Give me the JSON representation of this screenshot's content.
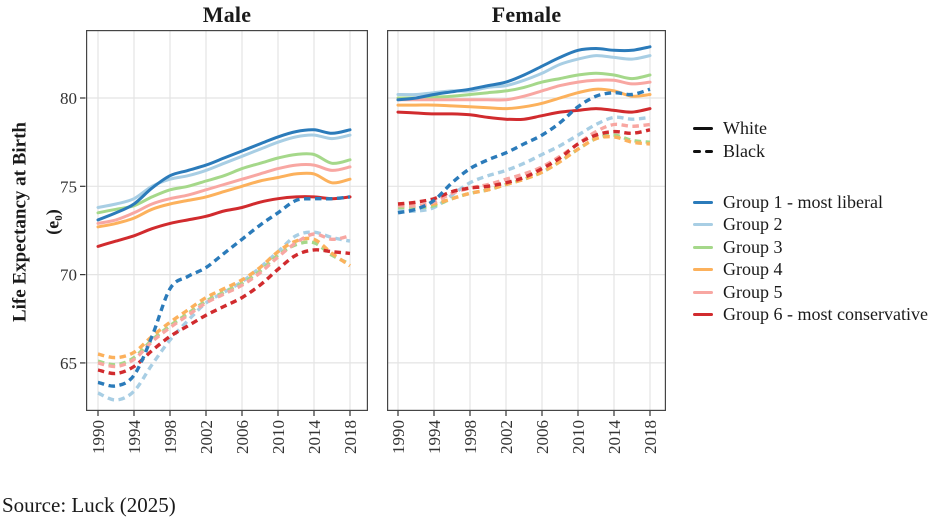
{
  "figure": {
    "y_axis": {
      "title": "Life Expectancy at Birth",
      "subtitle": "(e₀)",
      "tick_labels": [
        "80",
        "75",
        "70",
        "65"
      ]
    },
    "source_note": "Source: Luck (2025)",
    "legend": {
      "line_types": [
        {
          "label": "White",
          "style": "solid"
        },
        {
          "label": "Black",
          "style": "dashed"
        }
      ],
      "groups": [
        {
          "label": "Group 1 - most liberal",
          "color": "#2b7bba"
        },
        {
          "label": "Group 2",
          "color": "#a8cee4"
        },
        {
          "label": "Group 3",
          "color": "#a5d88a"
        },
        {
          "label": "Group 4",
          "color": "#fcb15c"
        },
        {
          "label": "Group 5",
          "color": "#f8a7a2"
        },
        {
          "label": "Group 6 - most conservative",
          "color": "#d12b2e"
        }
      ]
    },
    "colors": {
      "text": "#1a1a1a",
      "grid": "#e4e4e4",
      "panel_border": "#454545",
      "axis_tick": "#333333",
      "key_black": "#111111"
    }
  },
  "chart_data": {
    "type": "line",
    "title": "",
    "xlabel": "",
    "ylabel": "Life Expectancy at Birth (e0)",
    "years": [
      1990,
      1992,
      1994,
      1996,
      1998,
      2000,
      2002,
      2004,
      2006,
      2008,
      2010,
      2012,
      2014,
      2016,
      2018
    ],
    "x_tick_years": [
      1990,
      1994,
      1998,
      2002,
      2006,
      2010,
      2014,
      2018
    ],
    "y_ticks": [
      80,
      75,
      70,
      65
    ],
    "ylim": [
      62.3,
      83.9
    ],
    "grid": true,
    "legend_position": "right",
    "panels": [
      {
        "title": "Male",
        "series": [
          {
            "group": 1,
            "race": "White",
            "values": [
              73.1,
              73.5,
              74.0,
              74.9,
              75.6,
              75.9,
              76.2,
              76.6,
              77.0,
              77.4,
              77.8,
              78.1,
              78.2,
              78.0,
              78.2
            ]
          },
          {
            "group": 2,
            "race": "White",
            "values": [
              73.8,
              74.0,
              74.3,
              75.0,
              75.4,
              75.6,
              75.9,
              76.3,
              76.7,
              77.1,
              77.5,
              77.8,
              77.9,
              77.7,
              77.9
            ]
          },
          {
            "group": 3,
            "race": "White",
            "values": [
              73.5,
              73.7,
              73.9,
              74.4,
              74.8,
              75.0,
              75.3,
              75.6,
              76.0,
              76.3,
              76.6,
              76.8,
              76.8,
              76.3,
              76.5
            ]
          },
          {
            "group": 4,
            "race": "White",
            "values": [
              72.7,
              72.9,
              73.2,
              73.7,
              74.0,
              74.2,
              74.4,
              74.7,
              75.0,
              75.3,
              75.5,
              75.7,
              75.7,
              75.2,
              75.4
            ]
          },
          {
            "group": 5,
            "race": "White",
            "values": [
              72.9,
              73.1,
              73.5,
              74.0,
              74.3,
              74.5,
              74.8,
              75.1,
              75.4,
              75.7,
              76.0,
              76.2,
              76.2,
              75.9,
              76.1
            ]
          },
          {
            "group": 6,
            "race": "White",
            "values": [
              71.6,
              71.9,
              72.2,
              72.6,
              72.9,
              73.1,
              73.3,
              73.6,
              73.8,
              74.1,
              74.3,
              74.4,
              74.4,
              74.3,
              74.4
            ]
          },
          {
            "group": 1,
            "race": "Black",
            "values": [
              63.9,
              63.7,
              64.3,
              66.5,
              69.2,
              69.9,
              70.4,
              71.2,
              72.0,
              72.8,
              73.5,
              74.2,
              74.3,
              74.3,
              74.4
            ]
          },
          {
            "group": 2,
            "race": "Black",
            "values": [
              63.3,
              62.9,
              63.4,
              64.9,
              66.3,
              67.4,
              68.4,
              69.0,
              69.6,
              70.4,
              71.3,
              72.2,
              72.4,
              72.1,
              71.9
            ]
          },
          {
            "group": 3,
            "race": "Black",
            "values": [
              65.1,
              64.9,
              65.3,
              66.3,
              67.1,
              67.8,
              68.5,
              69.0,
              69.5,
              70.2,
              71.1,
              71.7,
              71.8,
              71.1,
              70.6
            ]
          },
          {
            "group": 4,
            "race": "Black",
            "values": [
              65.5,
              65.3,
              65.6,
              66.5,
              67.3,
              68.0,
              68.7,
              69.2,
              69.7,
              70.4,
              71.3,
              71.9,
              72.0,
              71.2,
              70.5
            ]
          },
          {
            "group": 5,
            "race": "Black",
            "values": [
              65.0,
              64.8,
              65.2,
              66.2,
              67.0,
              67.7,
              68.4,
              68.9,
              69.4,
              70.1,
              71.0,
              71.8,
              72.3,
              72.0,
              72.2
            ]
          },
          {
            "group": 6,
            "race": "Black",
            "values": [
              64.6,
              64.4,
              64.8,
              65.7,
              66.5,
              67.1,
              67.7,
              68.2,
              68.7,
              69.4,
              70.3,
              71.1,
              71.4,
              71.3,
              71.2
            ]
          }
        ]
      },
      {
        "title": "Female",
        "series": [
          {
            "group": 1,
            "race": "White",
            "values": [
              79.9,
              80.0,
              80.2,
              80.35,
              80.5,
              80.7,
              80.9,
              81.3,
              81.8,
              82.3,
              82.7,
              82.8,
              82.7,
              82.7,
              82.9
            ]
          },
          {
            "group": 2,
            "race": "White",
            "values": [
              80.2,
              80.2,
              80.3,
              80.4,
              80.4,
              80.6,
              80.7,
              81.0,
              81.4,
              81.9,
              82.2,
              82.4,
              82.3,
              82.2,
              82.4
            ]
          },
          {
            "group": 3,
            "race": "White",
            "values": [
              80.0,
              80.0,
              80.05,
              80.1,
              80.2,
              80.3,
              80.4,
              80.6,
              80.9,
              81.1,
              81.3,
              81.4,
              81.3,
              81.1,
              81.3
            ]
          },
          {
            "group": 4,
            "race": "White",
            "values": [
              79.6,
              79.6,
              79.6,
              79.55,
              79.5,
              79.45,
              79.4,
              79.5,
              79.7,
              80.0,
              80.3,
              80.5,
              80.4,
              80.1,
              80.2
            ]
          },
          {
            "group": 5,
            "race": "White",
            "values": [
              79.9,
              79.9,
              79.9,
              79.9,
              79.9,
              79.9,
              79.9,
              80.1,
              80.4,
              80.7,
              80.9,
              81.0,
              81.0,
              80.8,
              80.9
            ]
          },
          {
            "group": 6,
            "race": "White",
            "values": [
              79.2,
              79.15,
              79.1,
              79.1,
              79.05,
              78.9,
              78.8,
              78.8,
              79.0,
              79.2,
              79.3,
              79.4,
              79.3,
              79.2,
              79.4
            ]
          },
          {
            "group": 1,
            "race": "Black",
            "values": [
              73.5,
              73.7,
              74.2,
              75.2,
              76.0,
              76.5,
              76.9,
              77.4,
              77.9,
              78.6,
              79.5,
              80.1,
              80.3,
              80.2,
              80.5
            ]
          },
          {
            "group": 2,
            "race": "Black",
            "values": [
              73.6,
              73.6,
              73.8,
              74.5,
              75.2,
              75.6,
              75.9,
              76.3,
              76.8,
              77.3,
              77.9,
              78.5,
              78.9,
              78.8,
              78.9
            ]
          },
          {
            "group": 3,
            "race": "Black",
            "values": [
              73.8,
              73.8,
              73.9,
              74.3,
              74.6,
              74.8,
              75.1,
              75.4,
              75.8,
              76.4,
              77.1,
              77.7,
              77.9,
              77.6,
              77.5
            ]
          },
          {
            "group": 4,
            "race": "Black",
            "values": [
              73.9,
              73.9,
              74.0,
              74.3,
              74.6,
              74.8,
              75.1,
              75.4,
              75.8,
              76.4,
              77.1,
              77.7,
              77.8,
              77.5,
              77.4
            ]
          },
          {
            "group": 5,
            "race": "Black",
            "values": [
              73.9,
              73.9,
              74.1,
              74.6,
              74.9,
              75.1,
              75.4,
              75.7,
              76.1,
              76.7,
              77.4,
              78.1,
              78.5,
              78.4,
              78.5
            ]
          },
          {
            "group": 6,
            "race": "Black",
            "values": [
              74.0,
              74.1,
              74.3,
              74.7,
              74.9,
              75.0,
              75.2,
              75.5,
              76.0,
              76.6,
              77.4,
              77.9,
              78.1,
              78.0,
              78.2
            ]
          }
        ]
      }
    ]
  }
}
